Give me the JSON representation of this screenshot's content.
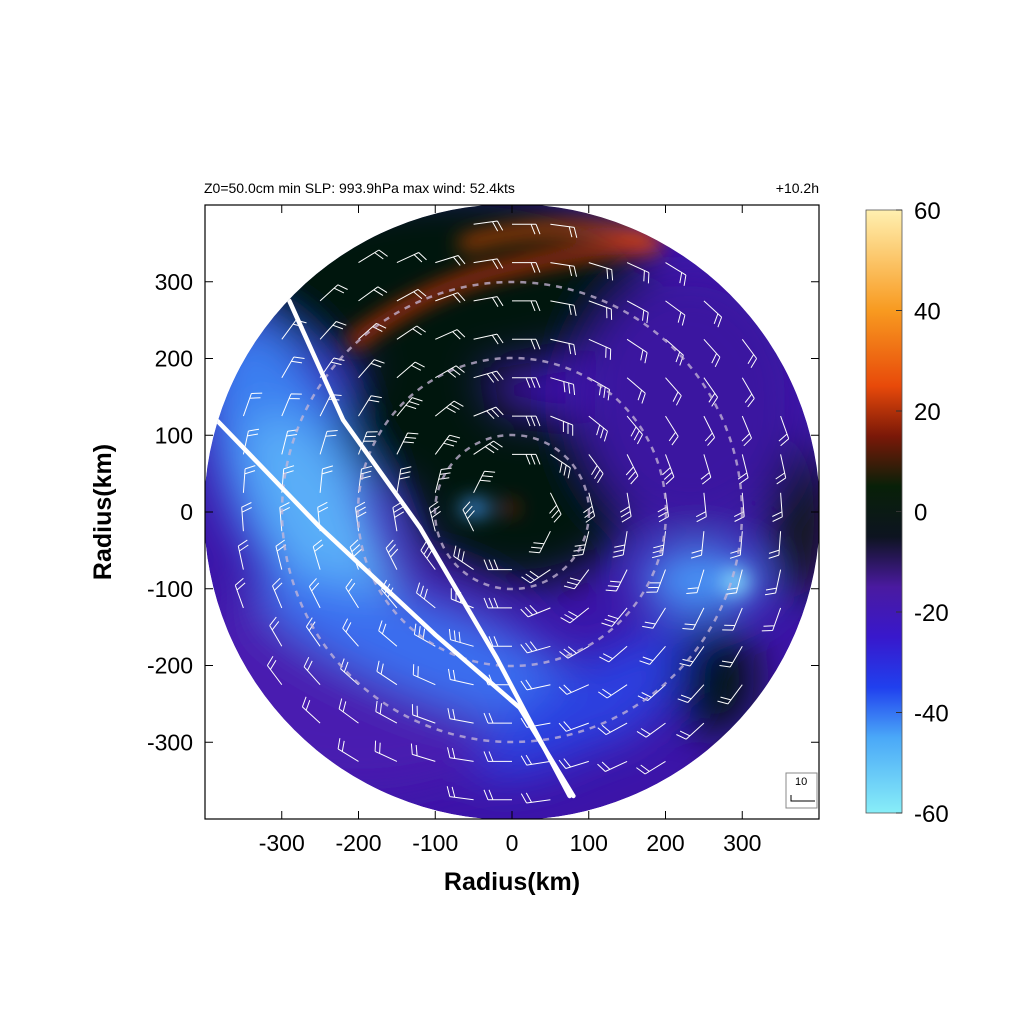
{
  "header": {
    "left": "Z0=50.0cm  min SLP: 993.9hPa   max wind: 52.4kts",
    "right": "+10.2h"
  },
  "reference_barb": {
    "label": "10",
    "speed": 10
  },
  "chart_data": {
    "type": "heatmap",
    "title": "",
    "xlabel": "Radius(km)",
    "ylabel": "Radius(km)",
    "xlim": [
      -400,
      400
    ],
    "ylim": [
      -400,
      400
    ],
    "x_ticks": [
      -300,
      -200,
      -100,
      0,
      100,
      200,
      300
    ],
    "y_ticks": [
      300,
      200,
      100,
      0,
      -100,
      -200,
      -300
    ],
    "domain_radius_km": 400,
    "grid": false,
    "range_rings_km": [
      100,
      200,
      300
    ],
    "colorbar": {
      "min": -60,
      "max": 60,
      "ticks": [
        60,
        40,
        20,
        0,
        -20,
        -40,
        -60
      ],
      "colors": [
        {
          "value": -60,
          "color": "#88eef8"
        },
        {
          "value": -45,
          "color": "#4aa8f8"
        },
        {
          "value": -35,
          "color": "#2040ee"
        },
        {
          "value": -25,
          "color": "#3818cc"
        },
        {
          "value": -15,
          "color": "#4a1aa0"
        },
        {
          "value": -5,
          "color": "#0d1420"
        },
        {
          "value": 5,
          "color": "#082008"
        },
        {
          "value": 15,
          "color": "#7a1808"
        },
        {
          "value": 25,
          "color": "#e84a0a"
        },
        {
          "value": 40,
          "color": "#f89a20"
        },
        {
          "value": 60,
          "color": "#fff0b0"
        }
      ]
    },
    "field_features": [
      {
        "name": "inner-core",
        "color": "#05120c"
      },
      {
        "name": "northern-band",
        "color": "#05140a"
      },
      {
        "name": "outer-rainband",
        "color": "#c83010"
      },
      {
        "name": "western-inflow",
        "color": "#3a7ef0"
      },
      {
        "name": "eastern-inflow",
        "color": "#4aa4ff"
      },
      {
        "name": "southeast-cell",
        "color": "#06140a"
      }
    ],
    "track_lines": [
      {
        "name": "line-1",
        "points": [
          [
            -290,
            275
          ],
          [
            -220,
            120
          ],
          [
            -120,
            -20
          ],
          [
            -20,
            -190
          ],
          [
            75,
            -370
          ]
        ]
      },
      {
        "name": "line-2",
        "points": [
          [
            -385,
            120
          ],
          [
            -250,
            -20
          ],
          [
            -100,
            -160
          ],
          [
            10,
            -255
          ],
          [
            80,
            -370
          ]
        ]
      }
    ]
  }
}
